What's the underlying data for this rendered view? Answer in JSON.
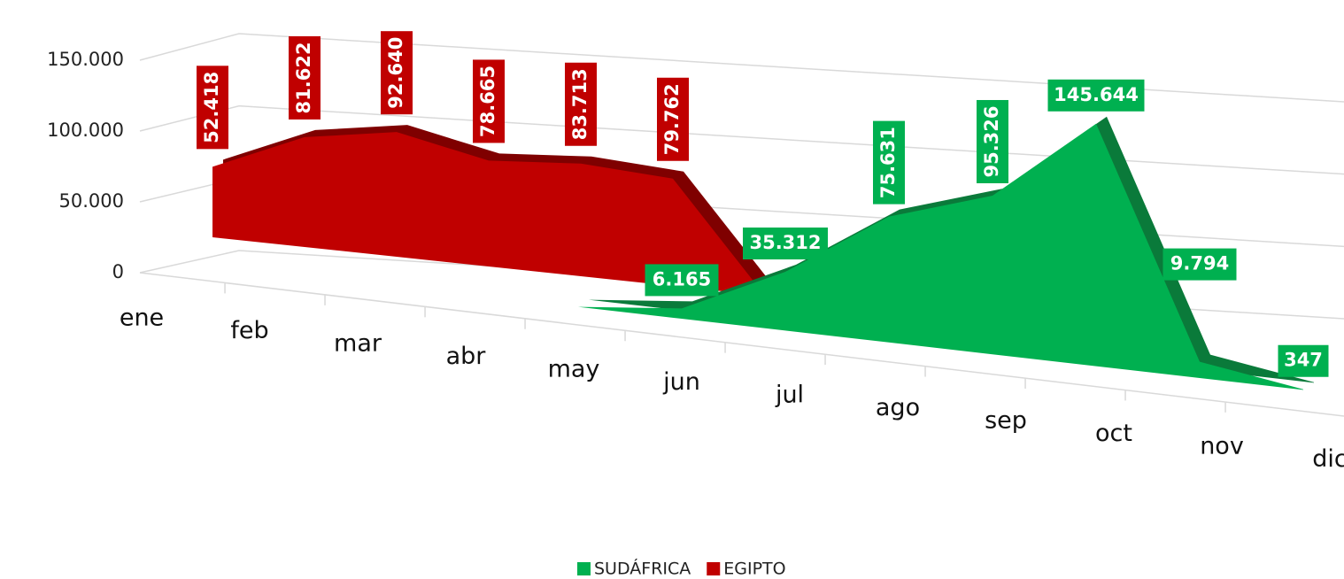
{
  "chart_data": {
    "type": "area3d",
    "categories": [
      "ene",
      "feb",
      "mar",
      "abr",
      "may",
      "jun",
      "jul",
      "ago",
      "sep",
      "oct",
      "nov",
      "dic"
    ],
    "series": [
      {
        "name": "SUDÁFRICA",
        "color": "#00b050",
        "edge": "#0a7a3a",
        "values": [
          0,
          0,
          0,
          0,
          0,
          6165,
          35312,
          75631,
          95326,
          145644,
          9794,
          347
        ],
        "value_labels": [
          null,
          null,
          null,
          null,
          null,
          "6.165",
          "35.312",
          "75.631",
          "95.326",
          "145.644",
          "9.794",
          "347"
        ]
      },
      {
        "name": "EGIPTO",
        "color": "#c00000",
        "edge": "#7f0000",
        "values": [
          52418,
          81622,
          92640,
          78665,
          83713,
          79762,
          0,
          0,
          0,
          0,
          0,
          0
        ],
        "value_labels": [
          "52.418",
          "81.622",
          "92.640",
          "78.665",
          "83.713",
          "79.762",
          null,
          null,
          null,
          null,
          null,
          null
        ]
      }
    ],
    "ylim": [
      0,
      150000
    ],
    "yticks": [
      0,
      {
        "value": 50000,
        "label": "50.000"
      },
      {
        "value": 100000,
        "label": "100.000"
      },
      {
        "value": 150000,
        "label": "150.000"
      }
    ],
    "grid": true,
    "legend": "bottom"
  }
}
